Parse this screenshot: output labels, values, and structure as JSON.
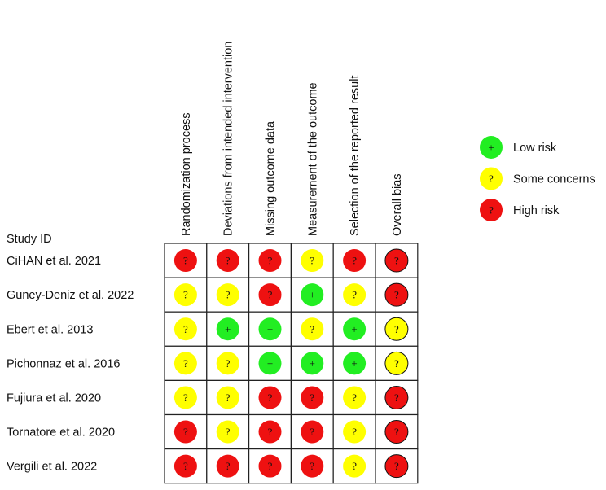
{
  "chart_data": {
    "type": "table",
    "row_header": "Study ID",
    "columns": [
      "Randomization process",
      "Deviations from intended intervention",
      "Missing outcome data",
      "Measurement of the outcome",
      "Selection of the reported result",
      "Overall bias"
    ],
    "rows": [
      {
        "study": "CiHAN et al. 2021",
        "ratings": [
          "high",
          "high",
          "high",
          "some",
          "high",
          "high"
        ]
      },
      {
        "study": "Guney-Deniz et al. 2022",
        "ratings": [
          "some",
          "some",
          "high",
          "low",
          "some",
          "high"
        ]
      },
      {
        "study": "Ebert et al. 2013",
        "ratings": [
          "some",
          "low",
          "low",
          "some",
          "low",
          "some"
        ]
      },
      {
        "study": "Pichonnaz et al. 2016",
        "ratings": [
          "some",
          "some",
          "low",
          "low",
          "low",
          "some"
        ]
      },
      {
        "study": "Fujiura et al. 2020",
        "ratings": [
          "some",
          "some",
          "high",
          "high",
          "some",
          "high"
        ]
      },
      {
        "study": "Tornatore et al. 2020",
        "ratings": [
          "high",
          "some",
          "high",
          "high",
          "some",
          "high"
        ]
      },
      {
        "study": "Vergili et al. 2022",
        "ratings": [
          "high",
          "high",
          "high",
          "high",
          "some",
          "high"
        ]
      }
    ],
    "legend": {
      "position": "right",
      "items": [
        {
          "key": "low",
          "label": "Low risk",
          "symbol": "+",
          "color": "#22ee22"
        },
        {
          "key": "some",
          "label": "Some concerns",
          "symbol": "?",
          "color": "#ffff00"
        },
        {
          "key": "high",
          "label": "High risk",
          "symbol": "?",
          "color": "#ee1111"
        }
      ]
    }
  }
}
